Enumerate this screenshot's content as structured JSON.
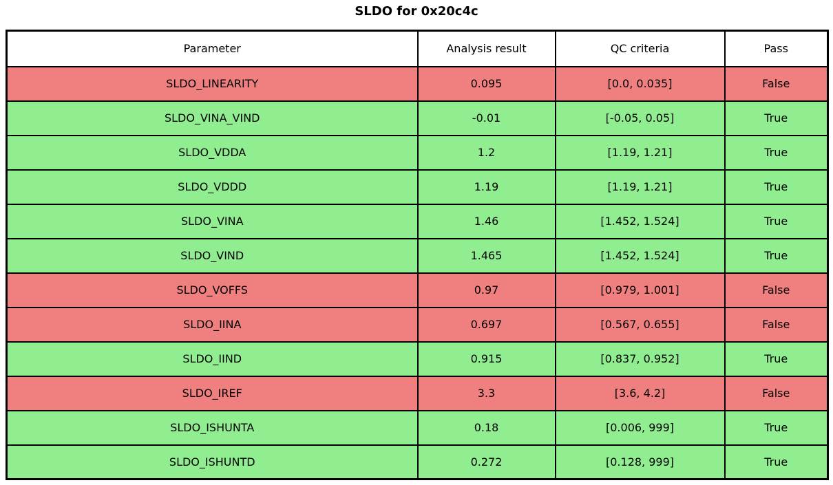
{
  "title": "SLDO for 0x20c4c",
  "colors": {
    "pass_row": "#90ee90",
    "fail_row": "#f08080",
    "header_bg": "#ffffff",
    "border": "#000000",
    "text": "#000000"
  },
  "chart_data": {
    "type": "table",
    "title": "SLDO for 0x20c4c",
    "columns": [
      "Parameter",
      "Analysis result",
      "QC criteria",
      "Pass"
    ],
    "rows": [
      {
        "parameter": "SLDO_LINEARITY",
        "analysis_result": "0.095",
        "qc_criteria": "[0.0, 0.035]",
        "pass": "False"
      },
      {
        "parameter": "SLDO_VINA_VIND",
        "analysis_result": "-0.01",
        "qc_criteria": "[-0.05, 0.05]",
        "pass": "True"
      },
      {
        "parameter": "SLDO_VDDA",
        "analysis_result": "1.2",
        "qc_criteria": "[1.19, 1.21]",
        "pass": "True"
      },
      {
        "parameter": "SLDO_VDDD",
        "analysis_result": "1.19",
        "qc_criteria": "[1.19, 1.21]",
        "pass": "True"
      },
      {
        "parameter": "SLDO_VINA",
        "analysis_result": "1.46",
        "qc_criteria": "[1.452, 1.524]",
        "pass": "True"
      },
      {
        "parameter": "SLDO_VIND",
        "analysis_result": "1.465",
        "qc_criteria": "[1.452, 1.524]",
        "pass": "True"
      },
      {
        "parameter": "SLDO_VOFFS",
        "analysis_result": "0.97",
        "qc_criteria": "[0.979, 1.001]",
        "pass": "False"
      },
      {
        "parameter": "SLDO_IINA",
        "analysis_result": "0.697",
        "qc_criteria": "[0.567, 0.655]",
        "pass": "False"
      },
      {
        "parameter": "SLDO_IIND",
        "analysis_result": "0.915",
        "qc_criteria": "[0.837, 0.952]",
        "pass": "True"
      },
      {
        "parameter": "SLDO_IREF",
        "analysis_result": "3.3",
        "qc_criteria": "[3.6, 4.2]",
        "pass": "False"
      },
      {
        "parameter": "SLDO_ISHUNTA",
        "analysis_result": "0.18",
        "qc_criteria": "[0.006, 999]",
        "pass": "True"
      },
      {
        "parameter": "SLDO_ISHUNTD",
        "analysis_result": "0.272",
        "qc_criteria": "[0.128, 999]",
        "pass": "True"
      }
    ]
  }
}
